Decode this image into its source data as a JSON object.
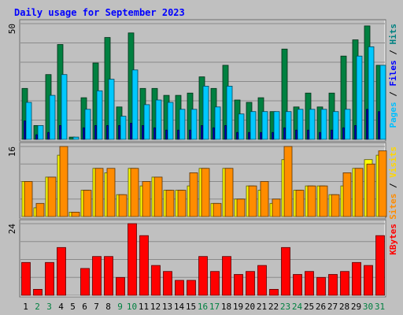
{
  "chart_data": {
    "type": "bar",
    "title": "Daily usage for September 2023",
    "categories": [
      "1",
      "2",
      "3",
      "4",
      "5",
      "6",
      "7",
      "8",
      "9",
      "10",
      "11",
      "12",
      "13",
      "14",
      "15",
      "16",
      "17",
      "18",
      "19",
      "20",
      "21",
      "22",
      "23",
      "24",
      "25",
      "26",
      "27",
      "28",
      "29",
      "30",
      "31"
    ],
    "weekend_days": [
      "2",
      "3",
      "9",
      "10",
      "16",
      "17",
      "23",
      "24",
      "30",
      "31"
    ],
    "panels": [
      {
        "id": "hits-panel",
        "ylim": [
          0,
          50
        ],
        "ymax_label": "50",
        "axis_labels": [
          {
            "text": "Hits",
            "color": "#008080"
          },
          {
            "text": "Files",
            "color": "#0000ff"
          },
          {
            "text": "Pages",
            "color": "#00bfff"
          }
        ],
        "series": [
          {
            "name": "Hits",
            "color": "#008040",
            "values": [
              22,
              6,
              28,
              41,
              1,
              18,
              33,
              44,
              14,
              46,
              22,
              22,
              19,
              19,
              20,
              27,
              22,
              32,
              17,
              16,
              18,
              12,
              39,
              14,
              20,
              14,
              20,
              36,
              43,
              49,
              32
            ]
          },
          {
            "name": "Files",
            "color": "#0000c0",
            "values": [
              8,
              2,
              3,
              6,
              0,
              5,
              6,
              6,
              6,
              7,
              6,
              5,
              4,
              4,
              4,
              6,
              5,
              6,
              3,
              3,
              3,
              3,
              5,
              4,
              4,
              3,
              4,
              5,
              6,
              13,
              12
            ]
          },
          {
            "name": "Pages",
            "color": "#00c8ff",
            "values": [
              16,
              6,
              19,
              28,
              1,
              13,
              21,
              26,
              10,
              30,
              15,
              17,
              16,
              13,
              13,
              23,
              14,
              23,
              11,
              12,
              12,
              12,
              12,
              13,
              13,
              13,
              12,
              13,
              36,
              40,
              32
            ]
          }
        ]
      },
      {
        "id": "visits-panel",
        "ylim": [
          0,
          16
        ],
        "ymax_label": "16",
        "axis_labels": [
          {
            "text": "Visits",
            "color": "#ffd700"
          },
          {
            "text": "Sites",
            "color": "#ff8c00"
          }
        ],
        "series": [
          {
            "name": "Visits",
            "color": "#ffff00",
            "values": [
              8,
              2,
              9,
              14,
              1,
              6,
              11,
              10,
              5,
              11,
              7,
              9,
              6,
              6,
              7,
              11,
              3,
              11,
              4,
              7,
              6,
              3,
              13,
              6,
              7,
              7,
              5,
              7,
              11,
              13,
              14
            ]
          },
          {
            "name": "Sites",
            "color": "#ff8c00",
            "values": [
              8,
              3,
              9,
              16,
              1,
              6,
              11,
              11,
              5,
              11,
              8,
              9,
              6,
              6,
              10,
              11,
              3,
              11,
              4,
              7,
              8,
              4,
              16,
              6,
              7,
              7,
              5,
              10,
              11,
              12,
              15
            ]
          }
        ]
      },
      {
        "id": "kbytes-panel",
        "ylim": [
          0,
          24
        ],
        "ymax_label": "24",
        "axis_labels": [
          {
            "text": "KBytes",
            "color": "#ff0000"
          }
        ],
        "series": [
          {
            "name": "KBytes",
            "color": "#ff0000",
            "values": [
              11,
              2,
              11,
              16,
              0,
              9,
              13,
              13,
              6,
              24,
              20,
              10,
              8,
              5,
              5,
              13,
              8,
              13,
              7,
              8,
              10,
              2,
              16,
              7,
              8,
              6,
              7,
              8,
              11,
              10,
              20
            ]
          }
        ]
      }
    ]
  }
}
